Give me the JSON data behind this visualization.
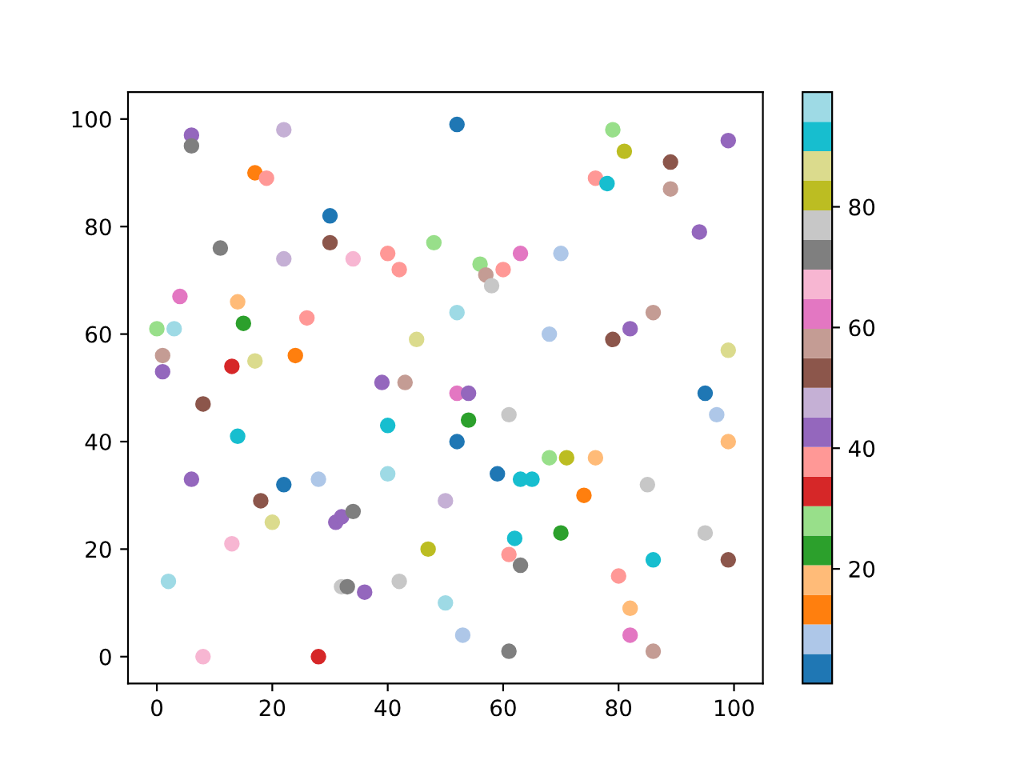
{
  "chart_data": {
    "type": "scatter",
    "marker": "circle",
    "grid": false,
    "legend": false,
    "xlim": [
      -5,
      105
    ],
    "ylim": [
      -5,
      105
    ],
    "xticks": [
      0,
      20,
      40,
      60,
      80,
      100
    ],
    "yticks": [
      0,
      20,
      40,
      60,
      80,
      100
    ],
    "clim": [
      1,
      99
    ],
    "cticks": [
      20,
      40,
      60,
      80
    ],
    "x": [
      6,
      6,
      22,
      52,
      17,
      19,
      30,
      30,
      11,
      22,
      34,
      40,
      42,
      48,
      56,
      57,
      58,
      60,
      63,
      70,
      79,
      81,
      76,
      78,
      89,
      89,
      99,
      94,
      4,
      14,
      26,
      0,
      3,
      15,
      52,
      45,
      68,
      79,
      82,
      86,
      99,
      1,
      1,
      13,
      17,
      24,
      39,
      43,
      52,
      54,
      95,
      97,
      8,
      54,
      61,
      52,
      99,
      14,
      40,
      6,
      22,
      28,
      40,
      59,
      63,
      65,
      68,
      71,
      76,
      74,
      85,
      18,
      20,
      31,
      32,
      34,
      50,
      70,
      95,
      13,
      47,
      62,
      61,
      63,
      80,
      86,
      99,
      2,
      32,
      33,
      36,
      42,
      50,
      53,
      82,
      82,
      86,
      8,
      28,
      61
    ],
    "values": [
      97,
      95,
      98,
      99,
      90,
      89,
      82,
      77,
      76,
      74,
      74,
      75,
      72,
      77,
      73,
      71,
      69,
      72,
      75,
      75,
      98,
      94,
      89,
      88,
      92,
      87,
      96,
      79,
      67,
      66,
      63,
      61,
      61,
      62,
      64,
      59,
      60,
      59,
      61,
      64,
      57,
      56,
      53,
      54,
      55,
      56,
      51,
      51,
      49,
      49,
      49,
      45,
      47,
      44,
      45,
      40,
      40,
      41,
      43,
      33,
      32,
      33,
      34,
      34,
      33,
      33,
      37,
      37,
      37,
      30,
      32,
      29,
      25,
      25,
      26,
      27,
      29,
      23,
      23,
      21,
      20,
      22,
      19,
      17,
      15,
      18,
      18,
      14,
      13,
      13,
      12,
      14,
      10,
      4,
      9,
      4,
      1,
      0,
      0,
      1
    ],
    "cvalues": [
      42,
      72,
      47,
      3,
      13,
      38,
      3,
      52,
      72,
      47,
      67,
      38,
      38,
      28,
      28,
      57,
      77,
      38,
      62,
      8,
      28,
      82,
      38,
      91,
      52,
      57,
      42,
      42,
      62,
      18,
      38,
      28,
      96,
      23,
      96,
      87,
      8,
      52,
      42,
      57,
      87,
      57,
      42,
      33,
      87,
      13,
      42,
      57,
      62,
      42,
      3,
      8,
      52,
      23,
      77,
      3,
      18,
      91,
      91,
      42,
      3,
      8,
      96,
      3,
      91,
      91,
      28,
      82,
      18,
      13,
      77,
      52,
      87,
      42,
      42,
      72,
      47,
      23,
      77,
      67,
      82,
      91,
      38,
      72,
      38,
      91,
      52,
      96,
      77,
      72,
      42,
      77,
      96,
      8,
      18,
      62,
      57,
      67,
      33,
      72
    ]
  }
}
